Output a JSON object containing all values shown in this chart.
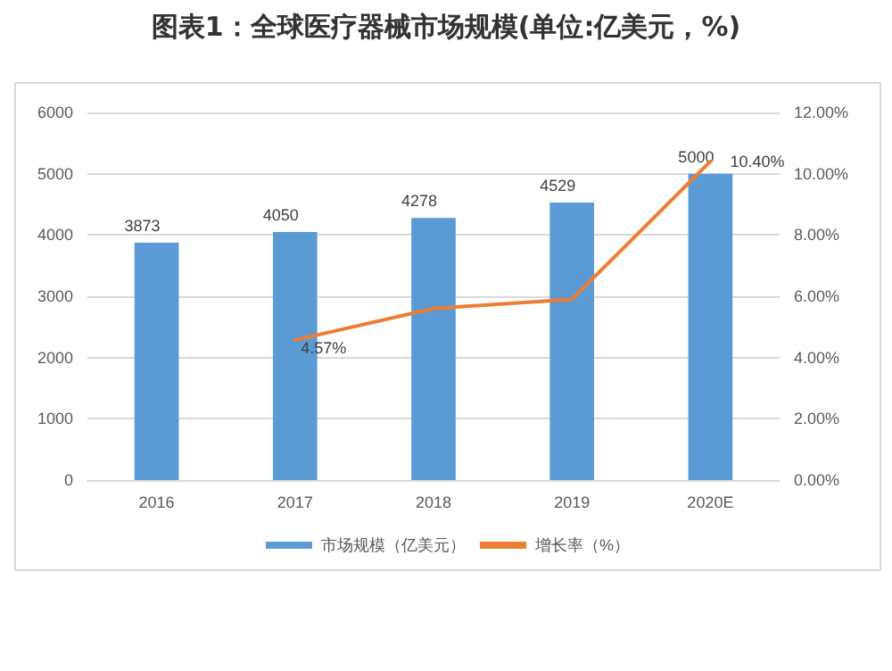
{
  "chart_data": {
    "type": "bar",
    "title": "图表1：全球医疗器械市场规模(单位:亿美元，%)",
    "categories": [
      "2016",
      "2017",
      "2018",
      "2019",
      "2020E"
    ],
    "series": [
      {
        "name": "市场规模（亿美元）",
        "color": "#5b9bd5",
        "values": [
          3873,
          4050,
          4278,
          4529,
          5000
        ],
        "data_labels": true
      },
      {
        "name": "增长率（%）",
        "type": "line",
        "axis": "y2",
        "color": "#ed7d31",
        "values": [
          null,
          4.57,
          5.6,
          5.9,
          10.4
        ],
        "value_labels": [
          null,
          "4.57%",
          null,
          null,
          "10.40%"
        ],
        "marker": "none"
      }
    ],
    "ylim": [
      0,
      6000
    ],
    "yticks": [
      0,
      1000,
      2000,
      3000,
      4000,
      5000,
      6000
    ],
    "y2lim": [
      0,
      12
    ],
    "y2ticks": [
      {
        "value": 0,
        "label": "0.00%"
      },
      {
        "value": 2,
        "label": "2.00%"
      },
      {
        "value": 4,
        "label": "4.00%"
      },
      {
        "value": 6,
        "label": "6.00%"
      },
      {
        "value": 8,
        "label": "8.00%"
      },
      {
        "value": 10,
        "label": "10.00%"
      },
      {
        "value": 12,
        "label": "12.00%"
      }
    ],
    "grid": "y",
    "legend": "bottom"
  }
}
